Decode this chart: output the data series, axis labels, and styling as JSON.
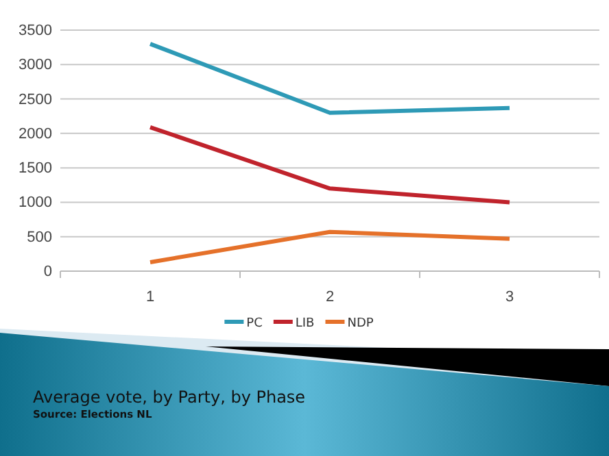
{
  "chart_data": {
    "type": "line",
    "title": "Average vote, by Party, by Phase",
    "annotations": [
      "Source:  Elections NL"
    ],
    "categories": [
      "1",
      "2",
      "3"
    ],
    "series": [
      {
        "name": "PC",
        "color": "#2e9ab6",
        "values": [
          3300,
          2300,
          2370
        ]
      },
      {
        "name": "LIB",
        "color": "#c0232c",
        "values": [
          2090,
          1200,
          1000
        ]
      },
      {
        "name": "NDP",
        "color": "#e5712a",
        "values": [
          130,
          570,
          470
        ]
      }
    ],
    "ylim": [
      0,
      3500
    ],
    "yticks": [
      0,
      500,
      1000,
      1500,
      2000,
      2500,
      3000,
      3500
    ],
    "grid": "y",
    "legend": "bottom"
  }
}
